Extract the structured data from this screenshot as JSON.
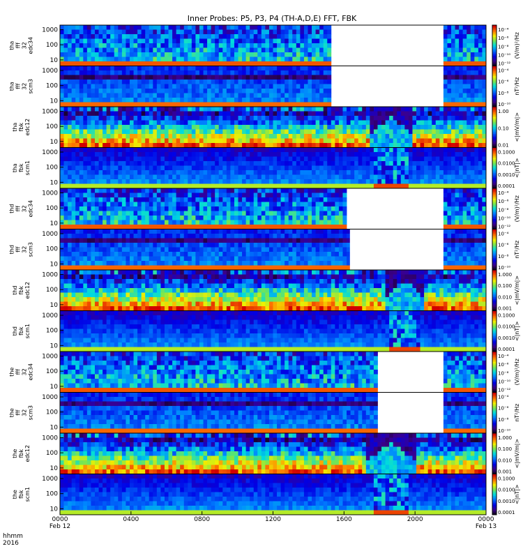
{
  "chart_data": {
    "type": "heatmap",
    "title": "Inner Probes: P5, P3, P4 (TH-A,D,E) FFT, FBK",
    "time_label_header": [
      "hhmm",
      "2016"
    ],
    "x_ticks": [
      {
        "t": 0,
        "label": "0000",
        "sub": "Feb 12"
      },
      {
        "t": 240,
        "label": "0400",
        "sub": ""
      },
      {
        "t": 480,
        "label": "0800",
        "sub": ""
      },
      {
        "t": 720,
        "label": "1200",
        "sub": ""
      },
      {
        "t": 960,
        "label": "1600",
        "sub": ""
      },
      {
        "t": 1200,
        "label": "2000",
        "sub": ""
      },
      {
        "t": 1440,
        "label": "0000",
        "sub": "Feb 13"
      }
    ],
    "xlim_minutes": [
      0,
      1440
    ],
    "ylim_hz": [
      4,
      2000
    ],
    "y_ticks": [
      "1000",
      "100",
      "10"
    ],
    "panels": [
      {
        "probe": "tha",
        "ylabel": [
          "tha",
          "fff",
          "32",
          "edc34"
        ],
        "kind": "fff_e",
        "cblabel": "(V/m)²/Hz",
        "cbticks": [
          "10⁻⁴",
          "10⁻⁶",
          "10⁻⁸",
          "10⁻¹⁰",
          "10⁻¹²"
        ],
        "gaps": [
          [
            920,
            1290
          ]
        ]
      },
      {
        "probe": "tha",
        "ylabel": [
          "tha",
          "fff",
          "32",
          "scm3"
        ],
        "kind": "fff_b",
        "cblabel": "nT²/Hz",
        "cbticks": [
          "10⁻⁴",
          "10⁻⁶",
          "10⁻⁸",
          "10⁻¹⁰"
        ],
        "gaps": [
          [
            920,
            1290
          ]
        ]
      },
      {
        "probe": "tha",
        "ylabel": [
          "tha",
          "fbk",
          "edc12"
        ],
        "kind": "fbk_e",
        "cblabel": "<|mV/m|>",
        "cbticks": [
          "1.00",
          "0.10",
          "0.01"
        ],
        "event": [
          1050,
          1190
        ]
      },
      {
        "probe": "tha",
        "ylabel": [
          "tha",
          "fbk",
          "scm1"
        ],
        "kind": "fbk_b",
        "cblabel": "<|nT|>",
        "cbticks": [
          "0.1000",
          "0.0100",
          "0.0010",
          "0.0001"
        ],
        "event": [
          1060,
          1180
        ]
      },
      {
        "probe": "thd",
        "ylabel": [
          "thd",
          "fff",
          "32",
          "edc34"
        ],
        "kind": "fff_e",
        "cblabel": "(V/m)²/Hz",
        "cbticks": [
          "10⁻⁴",
          "10⁻⁶",
          "10⁻⁸",
          "10⁻¹⁰",
          "10⁻¹²"
        ],
        "gaps": [
          [
            970,
            1290
          ]
        ]
      },
      {
        "probe": "thd",
        "ylabel": [
          "thd",
          "fff",
          "32",
          "scm3"
        ],
        "kind": "fff_b",
        "cblabel": "nT²/Hz",
        "cbticks": [
          "10⁻⁴",
          "10⁻⁶",
          "10⁻⁸",
          "10⁻¹⁰"
        ],
        "gaps": [
          [
            980,
            1290
          ]
        ]
      },
      {
        "probe": "thd",
        "ylabel": [
          "thd",
          "fbk",
          "edc12"
        ],
        "kind": "fbk_e",
        "cblabel": "<|mV/m|>",
        "cbticks": [
          "1.000",
          "0.100",
          "0.010",
          "0.001"
        ],
        "event": [
          1100,
          1230
        ]
      },
      {
        "probe": "thd",
        "ylabel": [
          "thd",
          "fbk",
          "scm1"
        ],
        "kind": "fbk_b",
        "cblabel": "<|nT|>",
        "cbticks": [
          "0.1000",
          "0.0100",
          "0.0010",
          "0.0001"
        ],
        "event": [
          1110,
          1220
        ]
      },
      {
        "probe": "the",
        "ylabel": [
          "the",
          "fff",
          "32",
          "edc34"
        ],
        "kind": "fff_e",
        "cblabel": "(V/m)²/Hz",
        "cbticks": [
          "10⁻⁴",
          "10⁻⁶",
          "10⁻⁸",
          "10⁻¹⁰",
          "10⁻¹²"
        ],
        "gaps": [
          [
            1080,
            1290
          ]
        ]
      },
      {
        "probe": "the",
        "ylabel": [
          "the",
          "fff",
          "32",
          "scm3"
        ],
        "kind": "fff_b",
        "cblabel": "nT²/Hz",
        "cbticks": [
          "10⁻⁴",
          "10⁻⁶",
          "10⁻⁸",
          "10⁻¹⁰"
        ],
        "gaps": [
          [
            1080,
            1290
          ]
        ]
      },
      {
        "probe": "the",
        "ylabel": [
          "the",
          "fbk",
          "edc12"
        ],
        "kind": "fbk_e",
        "cblabel": "<|mV/m|>",
        "cbticks": [
          "1.000",
          "0.100",
          "0.010",
          "0.001"
        ],
        "event": [
          1040,
          1200
        ]
      },
      {
        "probe": "the",
        "ylabel": [
          "the",
          "fbk",
          "scm1"
        ],
        "kind": "fbk_b",
        "cblabel": "<|nT|>",
        "cbticks": [
          "0.1000",
          "0.0100",
          "0.0010",
          "0.0001"
        ],
        "event": [
          1060,
          1180
        ]
      }
    ]
  }
}
